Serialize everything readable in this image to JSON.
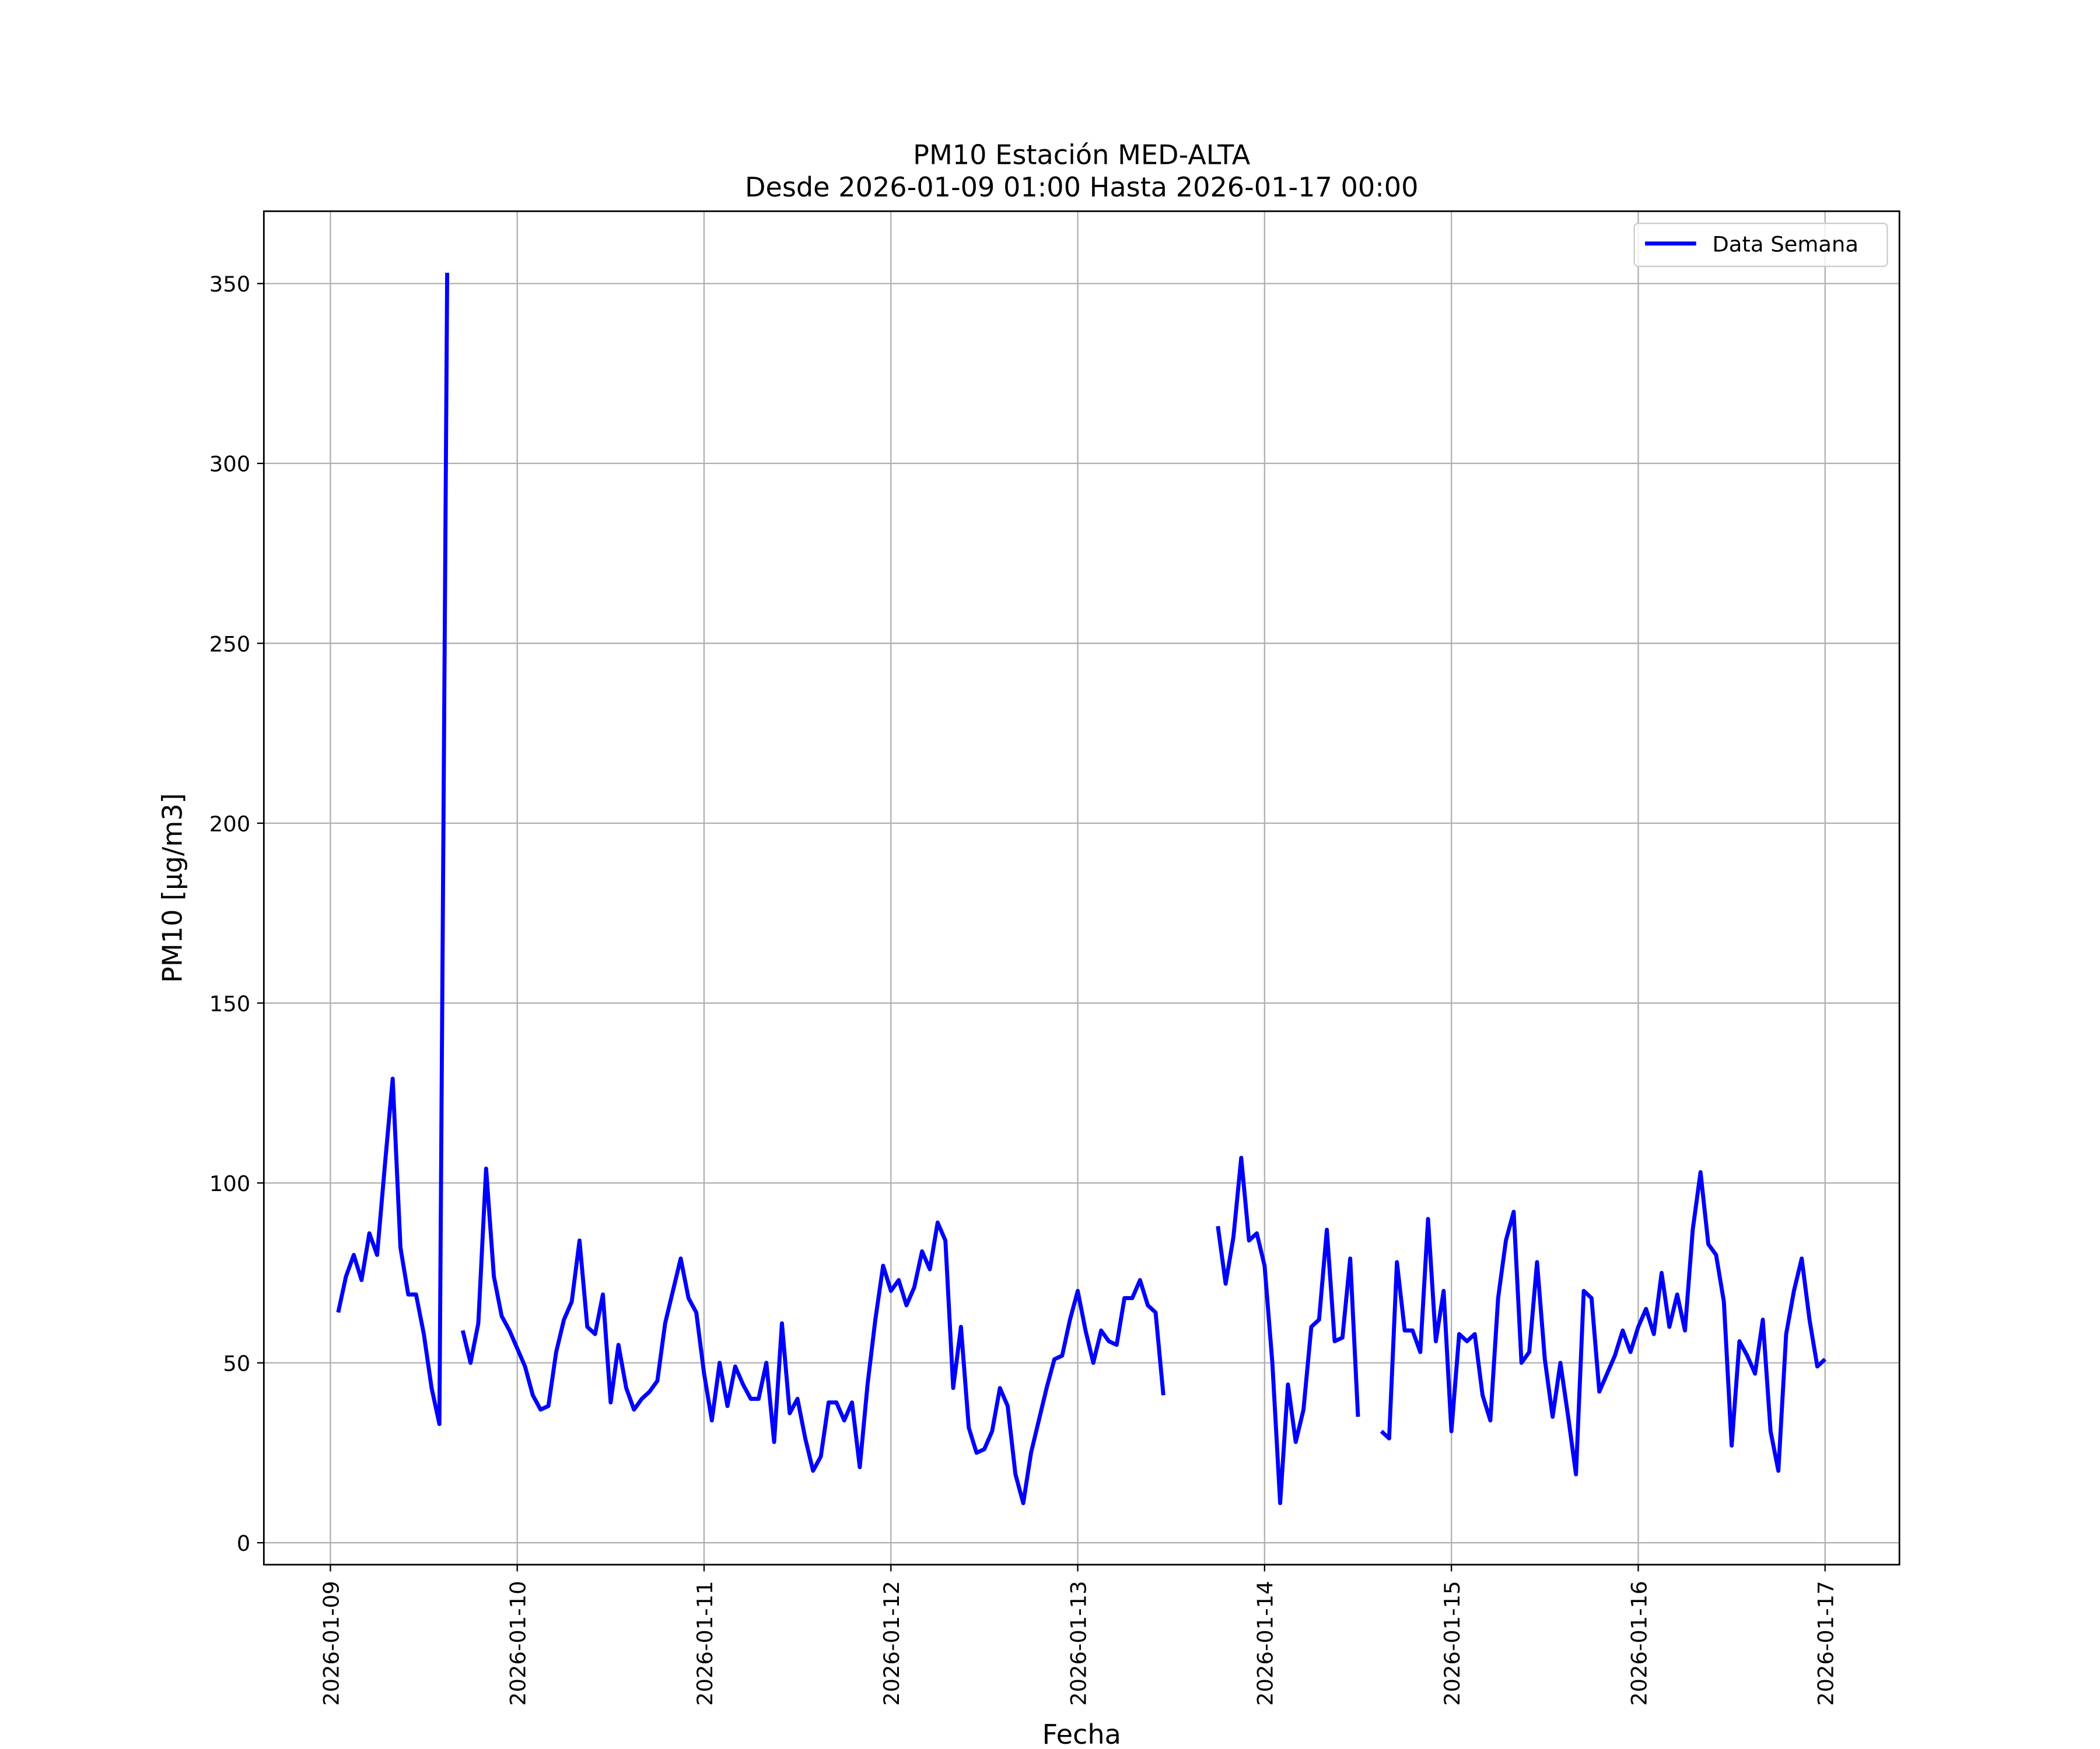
{
  "chart_data": {
    "type": "line",
    "title": "PM10 Estación MED-ALTA",
    "subtitle": "Desde 2026-01-09 01:00 Hasta 2026-01-17 00:00",
    "x_label": "Fecha",
    "y_label": "PM10 [μg/m3]",
    "x": [
      "2026-01-09 01:00",
      "2026-01-09 02:00",
      "2026-01-09 03:00",
      "2026-01-09 04:00",
      "2026-01-09 05:00",
      "2026-01-09 06:00",
      "2026-01-09 07:00",
      "2026-01-09 08:00",
      "2026-01-09 09:00",
      "2026-01-09 10:00",
      "2026-01-09 11:00",
      "2026-01-09 12:00",
      "2026-01-09 13:00",
      "2026-01-09 14:00",
      "2026-01-09 15:00",
      "2026-01-09 16:00",
      "2026-01-09 17:00",
      "2026-01-09 18:00",
      "2026-01-09 19:00",
      "2026-01-09 20:00",
      "2026-01-09 21:00",
      "2026-01-09 22:00",
      "2026-01-09 23:00",
      "2026-01-10 00:00",
      "2026-01-10 01:00",
      "2026-01-10 02:00",
      "2026-01-10 03:00",
      "2026-01-10 04:00",
      "2026-01-10 05:00",
      "2026-01-10 06:00",
      "2026-01-10 07:00",
      "2026-01-10 08:00",
      "2026-01-10 09:00",
      "2026-01-10 10:00",
      "2026-01-10 11:00",
      "2026-01-10 12:00",
      "2026-01-10 13:00",
      "2026-01-10 14:00",
      "2026-01-10 15:00",
      "2026-01-10 16:00",
      "2026-01-10 17:00",
      "2026-01-10 18:00",
      "2026-01-10 19:00",
      "2026-01-10 20:00",
      "2026-01-10 21:00",
      "2026-01-10 22:00",
      "2026-01-10 23:00",
      "2026-01-11 00:00",
      "2026-01-11 01:00",
      "2026-01-11 02:00",
      "2026-01-11 03:00",
      "2026-01-11 04:00",
      "2026-01-11 05:00",
      "2026-01-11 06:00",
      "2026-01-11 07:00",
      "2026-01-11 08:00",
      "2026-01-11 09:00",
      "2026-01-11 10:00",
      "2026-01-11 11:00",
      "2026-01-11 12:00",
      "2026-01-11 13:00",
      "2026-01-11 14:00",
      "2026-01-11 15:00",
      "2026-01-11 16:00",
      "2026-01-11 17:00",
      "2026-01-11 18:00",
      "2026-01-11 19:00",
      "2026-01-11 20:00",
      "2026-01-11 21:00",
      "2026-01-11 22:00",
      "2026-01-11 23:00",
      "2026-01-12 00:00",
      "2026-01-12 01:00",
      "2026-01-12 02:00",
      "2026-01-12 03:00",
      "2026-01-12 04:00",
      "2026-01-12 05:00",
      "2026-01-12 06:00",
      "2026-01-12 07:00",
      "2026-01-12 08:00",
      "2026-01-12 09:00",
      "2026-01-12 10:00",
      "2026-01-12 11:00",
      "2026-01-12 12:00",
      "2026-01-12 13:00",
      "2026-01-12 14:00",
      "2026-01-12 15:00",
      "2026-01-12 16:00",
      "2026-01-12 17:00",
      "2026-01-12 18:00",
      "2026-01-12 19:00",
      "2026-01-12 20:00",
      "2026-01-12 21:00",
      "2026-01-12 22:00",
      "2026-01-12 23:00",
      "2026-01-13 00:00",
      "2026-01-13 01:00",
      "2026-01-13 02:00",
      "2026-01-13 03:00",
      "2026-01-13 04:00",
      "2026-01-13 05:00",
      "2026-01-13 06:00",
      "2026-01-13 07:00",
      "2026-01-13 08:00",
      "2026-01-13 09:00",
      "2026-01-13 10:00",
      "2026-01-13 11:00",
      "2026-01-13 12:00",
      "2026-01-13 13:00",
      "2026-01-13 14:00",
      "2026-01-13 15:00",
      "2026-01-13 16:00",
      "2026-01-13 17:00",
      "2026-01-13 18:00",
      "2026-01-13 19:00",
      "2026-01-13 20:00",
      "2026-01-13 21:00",
      "2026-01-13 22:00",
      "2026-01-13 23:00",
      "2026-01-14 00:00",
      "2026-01-14 01:00",
      "2026-01-14 02:00",
      "2026-01-14 03:00",
      "2026-01-14 04:00",
      "2026-01-14 05:00",
      "2026-01-14 06:00",
      "2026-01-14 07:00",
      "2026-01-14 08:00",
      "2026-01-14 09:00",
      "2026-01-14 10:00",
      "2026-01-14 11:00",
      "2026-01-14 12:00",
      "2026-01-14 13:00",
      "2026-01-14 14:00",
      "2026-01-14 15:00",
      "2026-01-14 16:00",
      "2026-01-14 17:00",
      "2026-01-14 18:00",
      "2026-01-14 19:00",
      "2026-01-14 20:00",
      "2026-01-14 21:00",
      "2026-01-14 22:00",
      "2026-01-14 23:00",
      "2026-01-15 00:00",
      "2026-01-15 01:00",
      "2026-01-15 02:00",
      "2026-01-15 03:00",
      "2026-01-15 04:00",
      "2026-01-15 05:00",
      "2026-01-15 06:00",
      "2026-01-15 07:00",
      "2026-01-15 08:00",
      "2026-01-15 09:00",
      "2026-01-15 10:00",
      "2026-01-15 11:00",
      "2026-01-15 12:00",
      "2026-01-15 13:00",
      "2026-01-15 14:00",
      "2026-01-15 15:00",
      "2026-01-15 16:00",
      "2026-01-15 17:00",
      "2026-01-15 18:00",
      "2026-01-15 19:00",
      "2026-01-15 20:00",
      "2026-01-15 21:00",
      "2026-01-15 22:00",
      "2026-01-15 23:00",
      "2026-01-16 00:00",
      "2026-01-16 01:00",
      "2026-01-16 02:00",
      "2026-01-16 03:00",
      "2026-01-16 04:00",
      "2026-01-16 05:00",
      "2026-01-16 06:00",
      "2026-01-16 07:00",
      "2026-01-16 08:00",
      "2026-01-16 09:00",
      "2026-01-16 10:00",
      "2026-01-16 11:00",
      "2026-01-16 12:00",
      "2026-01-16 13:00",
      "2026-01-16 14:00",
      "2026-01-16 15:00",
      "2026-01-16 16:00",
      "2026-01-16 17:00",
      "2026-01-16 18:00",
      "2026-01-16 19:00",
      "2026-01-16 20:00",
      "2026-01-16 21:00",
      "2026-01-16 22:00",
      "2026-01-16 23:00",
      "2026-01-17 00:00"
    ],
    "series": [
      {
        "name": "Data Semana",
        "color": "#0000ff",
        "values": [
          64,
          74,
          80,
          73,
          86,
          80,
          105,
          129,
          82,
          69,
          69,
          58,
          43,
          33,
          353,
          null,
          59,
          50,
          61,
          104,
          74,
          63,
          59,
          54,
          49,
          41,
          37,
          38,
          53,
          62,
          67,
          84,
          60,
          58,
          69,
          39,
          55,
          43,
          37,
          40,
          42,
          45,
          61,
          70,
          79,
          68,
          64,
          47,
          34,
          50,
          38,
          49,
          44,
          40,
          40,
          50,
          28,
          61,
          36,
          40,
          29,
          20,
          24,
          39,
          39,
          34,
          39,
          21,
          44,
          62,
          77,
          70,
          73,
          66,
          71,
          81,
          76,
          89,
          84,
          43,
          60,
          32,
          25,
          26,
          31,
          43,
          38,
          19,
          11,
          25,
          34,
          43,
          51,
          52,
          62,
          70,
          59,
          50,
          59,
          56,
          55,
          68,
          68,
          73,
          66,
          64,
          41,
          null,
          null,
          null,
          null,
          null,
          null,
          88,
          72,
          85,
          107,
          84,
          86,
          77,
          50,
          11,
          44,
          28,
          37,
          60,
          62,
          87,
          56,
          57,
          79,
          35,
          null,
          null,
          31,
          29,
          78,
          59,
          59,
          53,
          90,
          56,
          70,
          31,
          58,
          56,
          58,
          41,
          34,
          68,
          84,
          92,
          50,
          53,
          78,
          51,
          35,
          50,
          35,
          19,
          70,
          68,
          42,
          47,
          52,
          59,
          53,
          60,
          65,
          58,
          75,
          60,
          69,
          59,
          87,
          103,
          83,
          80,
          67,
          27,
          56,
          52,
          47,
          62,
          31,
          20,
          58,
          70,
          79,
          62,
          49,
          51
        ]
      }
    ],
    "xlim": [
      "2026-01-08 15:27",
      "2026-01-17 09:33"
    ],
    "xticks": [
      "2026-01-09",
      "2026-01-10",
      "2026-01-11",
      "2026-01-12",
      "2026-01-13",
      "2026-01-14",
      "2026-01-15",
      "2026-01-16",
      "2026-01-17"
    ],
    "ylim": [
      -6.1,
      370.1
    ],
    "yticks": [
      0,
      50,
      100,
      150,
      200,
      250,
      300,
      350
    ],
    "grid": true,
    "legend": "upper right"
  }
}
